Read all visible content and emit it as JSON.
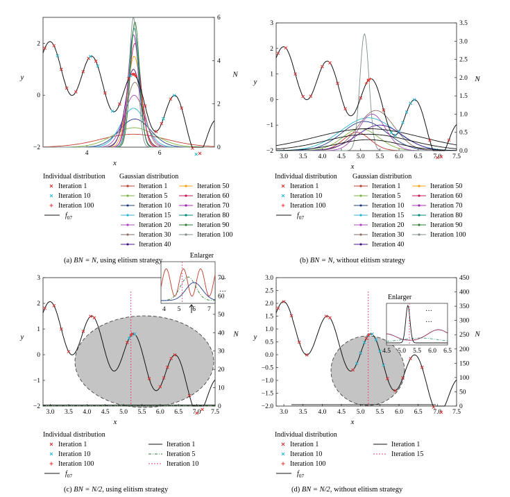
{
  "panels": [
    {
      "id": "a",
      "caption_prefix": "(a)",
      "caption_math": "BN = N,",
      "caption_text": "using elitism strategy",
      "x_label": "x",
      "y_label": "y",
      "y2_label": "N",
      "x_ticks": [
        "4",
        "6"
      ],
      "y_ticks": [
        "2",
        "0",
        "−2"
      ],
      "y2_ticks": [
        "6",
        "4",
        "2",
        "0"
      ],
      "legend_individual_title": "Individual distribution",
      "legend_gaussian_title": "Gaussian distribution",
      "legend_individual": [
        "Iteration 1",
        "Iteration 10",
        "Iteration 100"
      ],
      "legend_func": "f07",
      "legend_gaussian_col1": [
        "Iteration 1",
        "Iteration 5",
        "Iteration 10",
        "Iteration 15",
        "Iteration 20",
        "Iteration 30",
        "Iteration 40"
      ],
      "legend_gaussian_col2": [
        "Iteration 50",
        "Iteration 60",
        "Iteration 70",
        "Iteration 80",
        "Iteration 90",
        "Iteration 100"
      ]
    },
    {
      "id": "b",
      "caption_prefix": "(b)",
      "caption_math": "BN = N,",
      "caption_text": "without elitism strategy",
      "x_label": "x",
      "y_label": "y",
      "y2_label": "N",
      "x_ticks": [
        "3.0",
        "3.5",
        "4.0",
        "4.5",
        "5.0",
        "5.5",
        "6.0",
        "6.5",
        "7.0",
        "7.5"
      ],
      "y_ticks": [
        "3",
        "2",
        "1",
        "0",
        "−1",
        "−2"
      ],
      "y2_ticks": [
        "3.5",
        "3.0",
        "2.5",
        "2.0",
        "1.5",
        "1.0",
        "0.5",
        "0.0"
      ],
      "legend_individual_title": "Individual distribution",
      "legend_gaussian_title": "Gaussian distribution",
      "legend_individual": [
        "Iteration 1",
        "Iteration 10",
        "Iteration 100"
      ],
      "legend_func": "f07",
      "legend_gaussian_col1": [
        "Iteration 1",
        "Iteration 5",
        "Iteration 10",
        "Iteration 15",
        "Iteration 20",
        "Iteration 30",
        "Iteration 40"
      ],
      "legend_gaussian_col2": [
        "Iteration 50",
        "Iteration 60",
        "Iteration 70",
        "Iteration 80",
        "Iteration 90",
        "Iteration 100"
      ]
    },
    {
      "id": "c",
      "caption_prefix": "(c)",
      "caption_math": "BN = N/2,",
      "caption_text": "using elitism strategy",
      "x_label": "x",
      "y_label": "y",
      "y2_label": "N",
      "x_ticks": [
        "3.0",
        "3.5",
        "4.0",
        "4.5",
        "5.0",
        "5.5",
        "6.0",
        "6.5",
        "7.0",
        "7.5"
      ],
      "y_ticks": [
        "3",
        "2",
        "1",
        "0",
        "−1",
        "−2"
      ],
      "y2_ticks": [
        "70",
        "60",
        "50",
        "40",
        "30",
        "20",
        "10",
        "0"
      ],
      "inset_title": "Enlarger",
      "inset_x_ticks": [
        "4",
        "5",
        "6",
        "7"
      ],
      "ellipsis": "···",
      "legend_individual_title": "Individual distribution",
      "legend_individual": [
        "Iteration 1",
        "Iteration 10",
        "Iteration 100"
      ],
      "legend_func": "f07",
      "legend_gaussian_col1": [
        "Iteration 1",
        "Iteration 5",
        "Iteration 10"
      ]
    },
    {
      "id": "d",
      "caption_prefix": "(d)",
      "caption_math": "BN = N/2,",
      "caption_text": "without elitism strategy",
      "x_label": "x",
      "y_label": "y",
      "y2_label": "N",
      "x_ticks": [
        "3.0",
        "3.5",
        "4.0",
        "4.5",
        "5.0",
        "5.5",
        "6.0",
        "6.5",
        "7.0",
        "7.5"
      ],
      "y_ticks": [
        "3.0",
        "2.5",
        "2.0",
        "1.5",
        "1.0",
        "0.5",
        "0.0",
        "−0.5",
        "−1.0",
        "−1.5",
        "−2.0"
      ],
      "y2_ticks": [
        "450",
        "400",
        "350",
        "300",
        "250",
        "200",
        "150",
        "100",
        "50",
        "0"
      ],
      "inset_title": "Enlarger",
      "inset_x_ticks": [
        "4.5",
        "5.0",
        "5.5",
        "6.0",
        "6.5"
      ],
      "ellipsis": "···",
      "legend_individual_title": "Individual distribution",
      "legend_individual": [
        "Iteration 1",
        "Iteration 10",
        "Iteration 100"
      ],
      "legend_func": "f07",
      "legend_gaussian_col1": [
        "Iteration 1",
        "Iteration 15"
      ]
    }
  ],
  "chart_data": [
    {
      "type": "line",
      "panel": "a",
      "title": "BN = N, using elitism strategy",
      "xlabel": "x",
      "ylabel": "y",
      "y2label": "N",
      "xlim": [
        2.8,
        7.5
      ],
      "ylim": [
        -2,
        3
      ],
      "y2lim": [
        0,
        6
      ],
      "function": "f07",
      "gaussian_center_x": 5.3,
      "gaussian_peaks_N": [
        0.6,
        0.9,
        1.3,
        1.8,
        2.4,
        3.0,
        3.6,
        4.2,
        4.8,
        5.2,
        5.5,
        5.8,
        6.0
      ]
    },
    {
      "type": "line",
      "panel": "b",
      "title": "BN = N, without elitism strategy",
      "xlabel": "x",
      "ylabel": "y",
      "y2label": "N",
      "xlim": [
        2.8,
        7.5
      ],
      "ylim": [
        -2,
        3
      ],
      "y2lim": [
        0,
        3.5
      ],
      "function": "f07",
      "gaussian_centers_x": [
        4.9,
        5.0,
        5.1,
        5.2,
        5.3,
        5.4,
        5.5,
        5.1
      ],
      "gaussian_peaks_N": [
        0.5,
        0.6,
        0.8,
        0.9,
        1.0,
        1.1,
        0.7,
        3.2
      ]
    },
    {
      "type": "line",
      "panel": "c",
      "title": "BN = N/2, using elitism strategy",
      "xlabel": "x",
      "ylabel": "y",
      "y2label": "N",
      "xlim": [
        2.8,
        7.5
      ],
      "ylim": [
        -2,
        3
      ],
      "y2lim": [
        0,
        70
      ],
      "function": "f07",
      "marked_x": 5.2
    },
    {
      "type": "line",
      "panel": "d",
      "title": "BN = N/2, without elitism strategy",
      "xlabel": "x",
      "ylabel": "y",
      "y2label": "N",
      "xlim": [
        2.8,
        7.5
      ],
      "ylim": [
        -2,
        3
      ],
      "y2lim": [
        0,
        450
      ],
      "function": "f07",
      "marked_x": 5.2
    }
  ]
}
